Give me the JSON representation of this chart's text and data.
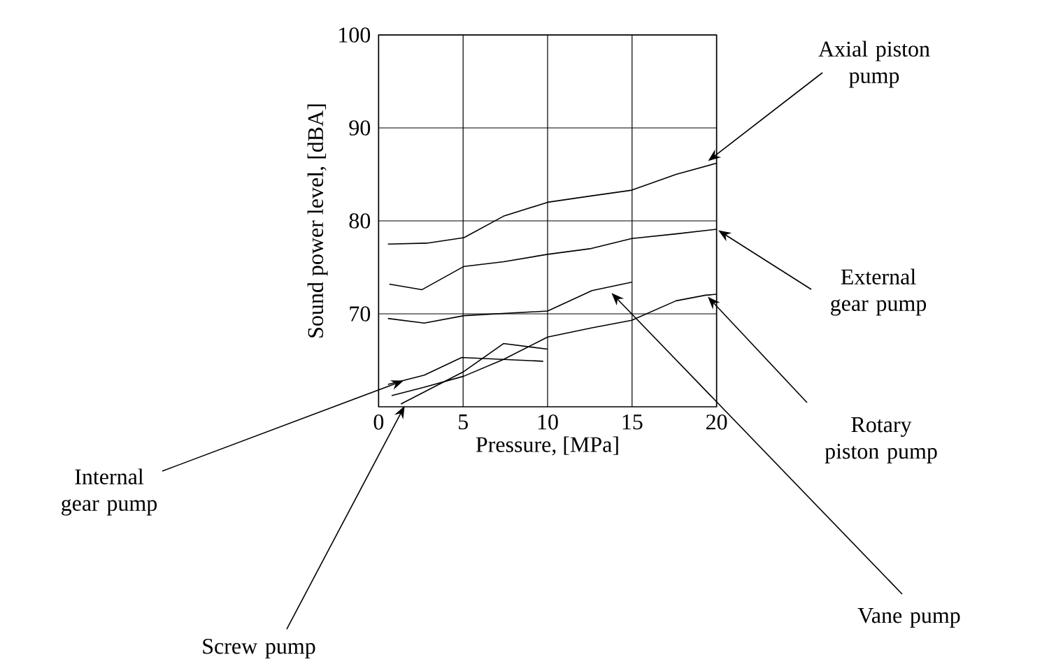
{
  "chart_data": {
    "type": "line",
    "xlabel": "Pressure, [MPa]",
    "ylabel": "Sound power level, [dBA]",
    "xlim": [
      0,
      20
    ],
    "ylim": [
      60,
      100
    ],
    "xticks": [
      0,
      5,
      10,
      15,
      20
    ],
    "yticks": [
      70,
      80,
      90,
      100
    ],
    "grid": true,
    "marker": "none",
    "line_style": "solid",
    "series": [
      {
        "color": "#000000",
        "x": [
          0.55,
          2.84,
          5.05,
          7.39,
          10.0,
          12.63,
          14.98,
          17.6,
          20.0
        ],
        "values": [
          77.5,
          77.6,
          78.2,
          80.5,
          82.0,
          82.7,
          83.3,
          85.0,
          86.2
        ]
      },
      {
        "color": "#000000",
        "x": [
          0.63,
          2.57,
          5.05,
          7.39,
          10.0,
          12.5,
          14.98,
          17.6,
          20.0
        ],
        "values": [
          73.2,
          72.6,
          75.1,
          75.6,
          76.4,
          77.0,
          78.1,
          78.6,
          79.1
        ]
      },
      {
        "color": "#000000",
        "x": [
          0.55,
          2.7,
          5.05,
          10.0,
          12.63,
          14.98
        ],
        "values": [
          69.5,
          69.0,
          69.8,
          70.3,
          72.5,
          73.4
        ]
      },
      {
        "color": "#000000",
        "x": [
          0.77,
          2.7,
          5.05,
          7.39,
          10.0,
          12.63,
          14.98,
          17.6,
          19.34,
          20.0
        ],
        "values": [
          61.2,
          62.1,
          63.3,
          65.1,
          67.5,
          68.5,
          69.3,
          71.4,
          72.0,
          72.1
        ]
      },
      {
        "color": "#000000",
        "x": [
          0.55,
          2.7,
          4.91,
          9.74
        ],
        "values": [
          62.4,
          63.4,
          65.3,
          64.9
        ]
      },
      {
        "color": "#000000",
        "x": [
          1.32,
          5.05,
          7.39,
          10.0
        ],
        "values": [
          60.3,
          63.8,
          66.8,
          66.2
        ]
      }
    ],
    "annotations": [
      {
        "text": "Axial piston pump",
        "x": 19.4,
        "y": 86.3
      },
      {
        "text": "External gear pump",
        "x": 20.0,
        "y": 79.1
      },
      {
        "text": "Rotary piston pump",
        "x": 19.4,
        "y": 72.0
      },
      {
        "text": "Vane pump",
        "x": 13.7,
        "y": 72.4
      },
      {
        "text": "Internal gear pump",
        "x": 1.6,
        "y": 62.9
      },
      {
        "text": "Screw pump",
        "x": 1.6,
        "y": 60.3
      }
    ]
  }
}
